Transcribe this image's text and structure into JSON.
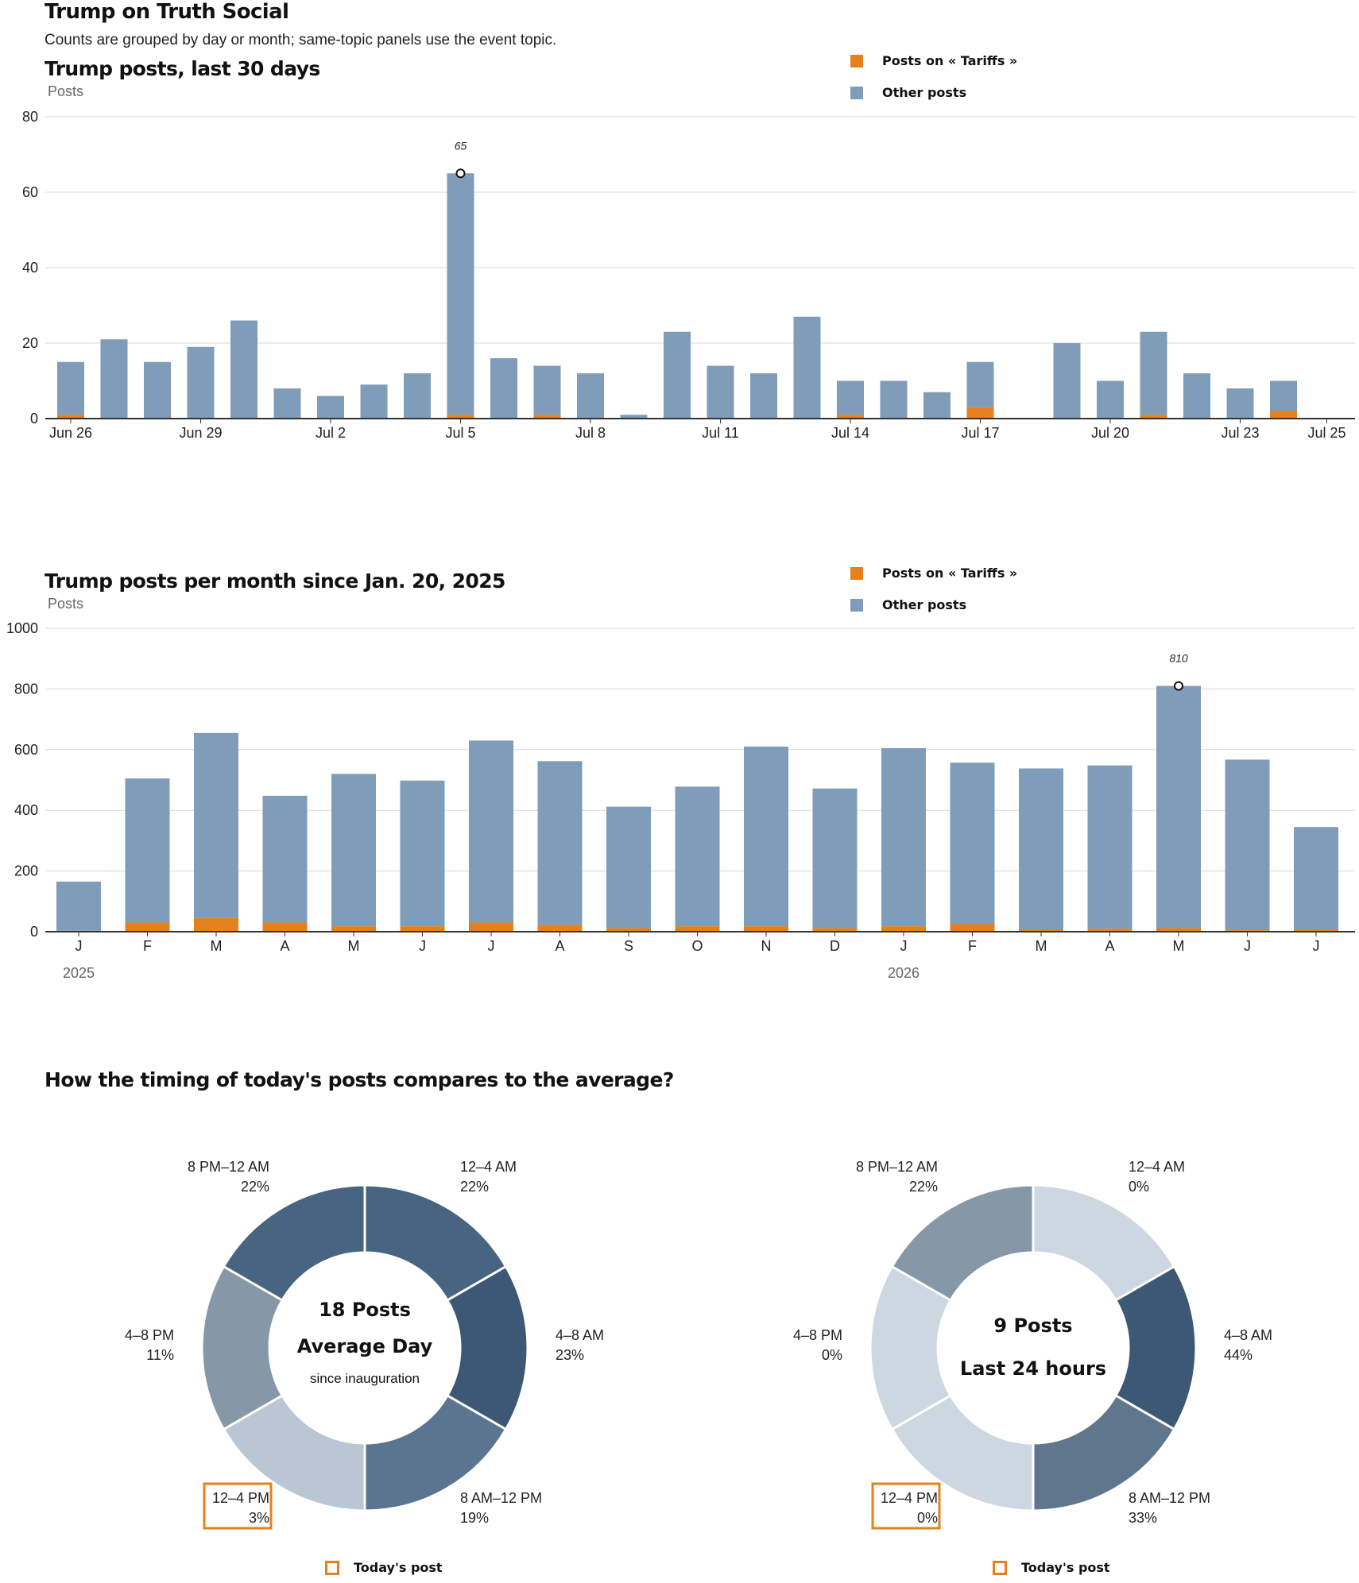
{
  "header": {
    "title": "Trump on Truth Social",
    "subtitle": "Counts are grouped by day or month; same-topic panels use the event topic."
  },
  "colors": {
    "topic": "#e5801c",
    "other": "#7f9cb8",
    "highlight": "#e5801c"
  },
  "legend": {
    "topic_label": "Posts on « Tariffs »",
    "other_label": "Other posts"
  },
  "chart_data": [
    {
      "type": "bar",
      "stacked": true,
      "title": "Trump posts, last 30 days",
      "ylabel": "Posts",
      "ylim": [
        0,
        80
      ],
      "yticks": [
        0,
        20,
        40,
        60,
        80
      ],
      "categories": [
        "Jun 26",
        "Jun 27",
        "Jun 28",
        "Jun 29",
        "Jun 30",
        "Jul 1",
        "Jul 2",
        "Jul 3",
        "Jul 4",
        "Jul 5",
        "Jul 6",
        "Jul 7",
        "Jul 8",
        "Jul 9",
        "Jul 10",
        "Jul 11",
        "Jul 12",
        "Jul 13",
        "Jul 14",
        "Jul 15",
        "Jul 16",
        "Jul 17",
        "Jul 18",
        "Jul 19",
        "Jul 20",
        "Jul 21",
        "Jul 22",
        "Jul 23",
        "Jul 24",
        "Jul 25"
      ],
      "xtick_labels": [
        {
          "index": 0,
          "label": "Jun 26"
        },
        {
          "index": 3,
          "label": "Jun 29"
        },
        {
          "index": 6,
          "label": "Jul 2"
        },
        {
          "index": 9,
          "label": "Jul 5"
        },
        {
          "index": 12,
          "label": "Jul 8"
        },
        {
          "index": 15,
          "label": "Jul 11"
        },
        {
          "index": 18,
          "label": "Jul 14"
        },
        {
          "index": 21,
          "label": "Jul 17"
        },
        {
          "index": 24,
          "label": "Jul 20"
        },
        {
          "index": 27,
          "label": "Jul 23"
        },
        {
          "index": 29,
          "label": "Jul 25"
        }
      ],
      "series": [
        {
          "name": "Posts on « Tariffs »",
          "values": [
            1,
            0,
            0,
            0,
            0,
            0,
            0,
            0,
            0,
            1,
            0,
            1,
            0,
            0,
            0,
            0,
            0,
            0,
            1,
            0,
            0,
            3,
            0,
            0,
            0,
            1,
            0,
            0,
            2,
            0
          ]
        },
        {
          "name": "Other posts",
          "values": [
            14,
            21,
            15,
            19,
            26,
            8,
            6,
            9,
            12,
            64,
            16,
            13,
            12,
            1,
            23,
            14,
            12,
            27,
            9,
            10,
            7,
            12,
            0,
            20,
            10,
            22,
            12,
            8,
            8,
            0
          ]
        }
      ],
      "annotation": {
        "index": 9,
        "label": "65"
      },
      "grid": true,
      "legend_position": "top-right"
    },
    {
      "type": "bar",
      "stacked": true,
      "title": "Trump posts per month since Jan. 20, 2025",
      "ylabel": "Posts",
      "ylim": [
        0,
        1000
      ],
      "yticks": [
        0,
        200,
        400,
        600,
        800,
        1000
      ],
      "categories": [
        "J",
        "F",
        "M",
        "A",
        "M",
        "J",
        "J",
        "A",
        "S",
        "O",
        "N",
        "D",
        "J",
        "F",
        "M",
        "A",
        "M",
        "J",
        "J"
      ],
      "year_labels": [
        {
          "index": 0,
          "label": "2025"
        },
        {
          "index": 12,
          "label": "2026"
        }
      ],
      "series": [
        {
          "name": "Posts on « Tariffs »",
          "values": [
            3,
            30,
            45,
            30,
            18,
            18,
            30,
            22,
            12,
            18,
            18,
            12,
            18,
            25,
            8,
            10,
            12,
            5,
            8
          ]
        },
        {
          "name": "Other posts",
          "values": [
            162,
            475,
            610,
            418,
            502,
            480,
            600,
            540,
            400,
            460,
            592,
            460,
            587,
            532,
            530,
            538,
            798,
            562,
            337
          ]
        }
      ],
      "annotation": {
        "index": 16,
        "label": "810"
      },
      "grid": true,
      "legend_position": "top-right"
    },
    {
      "type": "pie",
      "donut": true,
      "center_big_1": "18 Posts",
      "center_big_2": "Average Day",
      "center_small": "since inauguration",
      "slices": [
        {
          "label": "12–4 AM",
          "pct": "22%",
          "value": 22,
          "shade": "#476480"
        },
        {
          "label": "4–8 AM",
          "pct": "23%",
          "value": 23,
          "shade": "#3d5874"
        },
        {
          "label": "8 AM–12 PM",
          "pct": "19%",
          "value": 19,
          "shade": "#5b7490"
        },
        {
          "label": "12–4 PM",
          "pct": "3%",
          "value": 3,
          "shade": "#b9c6d3",
          "highlight": true
        },
        {
          "label": "4–8 PM",
          "pct": "11%",
          "value": 11,
          "shade": "#8697a8"
        },
        {
          "label": "8 PM–12 AM",
          "pct": "22%",
          "value": 22,
          "shade": "#476480"
        }
      ],
      "today_label": "Today's post"
    },
    {
      "type": "pie",
      "donut": true,
      "center_big_1": "9 Posts",
      "center_big_2": "Last 24 hours",
      "center_small": "",
      "slices": [
        {
          "label": "12–4 AM",
          "pct": "0%",
          "value": 0,
          "shade": "#cdd7e1"
        },
        {
          "label": "4–8 AM",
          "pct": "44%",
          "value": 44,
          "shade": "#3d5874"
        },
        {
          "label": "8 AM–12 PM",
          "pct": "33%",
          "value": 33,
          "shade": "#5f768d"
        },
        {
          "label": "12–4 PM",
          "pct": "0%",
          "value": 0,
          "shade": "#cdd7e1",
          "highlight": true
        },
        {
          "label": "4–8 PM",
          "pct": "0%",
          "value": 0,
          "shade": "#cdd7e1"
        },
        {
          "label": "8 PM–12 AM",
          "pct": "22%",
          "value": 22,
          "shade": "#8697a8"
        }
      ],
      "today_label": "Today's post"
    }
  ],
  "donut_section": {
    "title": "How the timing of today's posts compares to the average?"
  }
}
